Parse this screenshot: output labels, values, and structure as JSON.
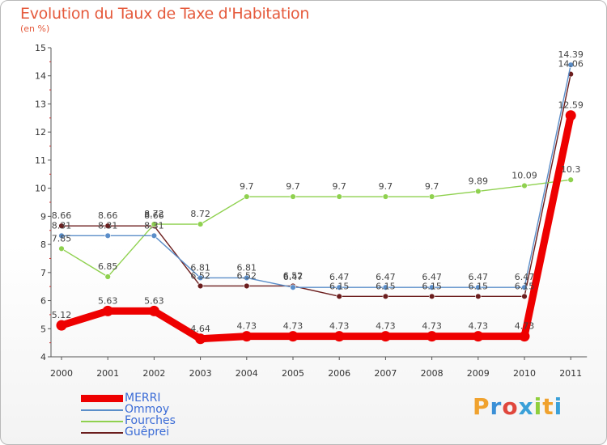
{
  "header": {
    "title": "Evolution du Taux de Taxe d'Habitation",
    "unit": "(en %)"
  },
  "logo": {
    "text": "Proxiti"
  },
  "chart_data": {
    "type": "line",
    "title": "Evolution du Taux de Taxe d'Habitation",
    "ylabel": "(en %)",
    "x": [
      "2000",
      "2001",
      "2002",
      "2003",
      "2004",
      "2005",
      "2006",
      "2007",
      "2008",
      "2009",
      "2010",
      "2011"
    ],
    "ylim": [
      4,
      15
    ],
    "yticks": [
      "4",
      "5",
      "6",
      "7",
      "8",
      "9",
      "10",
      "11",
      "12",
      "13",
      "14",
      "15"
    ],
    "grid": false,
    "legend_position": "bottom-left",
    "series": [
      {
        "name": "Gueprei",
        "legend_label": "Guêprei",
        "color": "#6b1d1d",
        "values": [
          8.66,
          8.66,
          8.66,
          6.52,
          6.52,
          6.52,
          6.15,
          6.15,
          6.15,
          6.15,
          6.15,
          14.06
        ],
        "labels": [
          "8.66",
          "8.66",
          "8.66",
          "6.52",
          "6.52",
          "6.52",
          "6.15",
          "6.15",
          "6.15",
          "6.15",
          "6.15",
          "14.06"
        ]
      },
      {
        "name": "Fourches",
        "legend_label": "Fourches",
        "color": "#8fd14f",
        "values": [
          7.85,
          6.85,
          8.72,
          8.72,
          9.7,
          9.7,
          9.7,
          9.7,
          9.7,
          9.89,
          10.09,
          10.3
        ],
        "labels": [
          "7.85",
          "6.85",
          "8.72",
          "8.72",
          "9.7",
          "9.7",
          "9.7",
          "9.7",
          "9.7",
          "9.89",
          "10.09",
          "10.3"
        ]
      },
      {
        "name": "Ommoy",
        "legend_label": "Ommoy",
        "color": "#5b8ec9",
        "values": [
          8.31,
          8.31,
          8.31,
          6.81,
          6.81,
          6.47,
          6.47,
          6.47,
          6.47,
          6.47,
          6.47,
          14.39
        ],
        "labels": [
          "8.31",
          "8.31",
          "8.31",
          "6.81",
          "6.81",
          "6.47",
          "6.47",
          "6.47",
          "6.47",
          "6.47",
          "6.47",
          "14.39"
        ]
      },
      {
        "name": "MERRI",
        "legend_label": "MERRI",
        "color": "#ee0000",
        "values": [
          5.12,
          5.63,
          5.63,
          4.64,
          4.73,
          4.73,
          4.73,
          4.73,
          4.73,
          4.73,
          4.73,
          12.59
        ],
        "labels": [
          "5.12",
          "5.63",
          "5.63",
          "4.64",
          "4.73",
          "4.73",
          "4.73",
          "4.73",
          "4.73",
          "4.73",
          "4.73",
          "12.59"
        ]
      }
    ]
  }
}
